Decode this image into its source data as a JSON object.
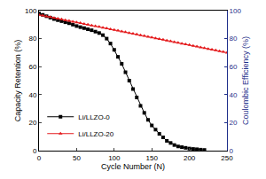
{
  "chart_data": {
    "type": "line",
    "x_label": "Cycle Number (N)",
    "y_label": "Capacity Retention (%)",
    "y2_label": "Coulombic Efficiency (%)",
    "xlim": [
      0,
      250
    ],
    "xticks": [
      0,
      50,
      100,
      150,
      200,
      250
    ],
    "ylim": [
      0,
      100
    ],
    "yticks": [
      0,
      20,
      40,
      60,
      80,
      100
    ],
    "y2lim": [
      0,
      100
    ],
    "y2ticks": [
      0,
      20,
      40,
      60,
      80,
      100
    ],
    "grid": false,
    "legend": "lower left",
    "series": [
      {
        "name": "Li/LLZO-0",
        "color": "#000000",
        "marker": "square",
        "line_style": "solid",
        "x": [
          0,
          5,
          10,
          15,
          20,
          25,
          30,
          35,
          40,
          45,
          50,
          55,
          60,
          65,
          70,
          75,
          80,
          85,
          90,
          95,
          100,
          105,
          110,
          115,
          120,
          125,
          130,
          135,
          140,
          145,
          150,
          155,
          160,
          165,
          170,
          175,
          180,
          185,
          190,
          195,
          200,
          205,
          210,
          215,
          220
        ],
        "values": [
          98,
          97,
          96,
          95,
          94,
          93.2,
          92.5,
          91.7,
          91,
          90,
          89,
          88.2,
          87.5,
          86.7,
          86,
          85,
          84,
          82.5,
          80,
          76.5,
          72,
          67,
          62,
          56,
          50,
          44,
          38,
          32,
          27,
          22,
          18,
          15,
          12,
          9.5,
          7,
          5.5,
          4,
          3,
          2.5,
          2,
          1.5,
          1.2,
          1,
          0.7,
          0.5
        ]
      },
      {
        "name": "Li/LLZO-20",
        "color": "#e41a1c",
        "marker": "triangle",
        "line_style": "solid",
        "x": [
          0,
          5,
          10,
          15,
          20,
          25,
          30,
          35,
          40,
          45,
          50,
          55,
          60,
          65,
          70,
          75,
          80,
          85,
          90,
          95,
          100,
          105,
          110,
          115,
          120,
          125,
          130,
          135,
          140,
          145,
          150,
          155,
          160,
          165,
          170,
          175,
          180,
          185,
          190,
          195,
          200,
          205,
          210,
          215,
          220,
          225,
          230,
          235,
          240,
          245,
          250
        ],
        "values": [
          97,
          96.5,
          95.9,
          95.4,
          94.8,
          94.3,
          93.8,
          93.2,
          92.7,
          92.1,
          91.6,
          91.1,
          90.5,
          90,
          89.4,
          88.9,
          88.4,
          87.8,
          87.3,
          86.7,
          86.2,
          85.7,
          85.1,
          84.6,
          84,
          83.5,
          83,
          82.4,
          81.9,
          81.3,
          80.8,
          80.3,
          79.7,
          79.2,
          78.6,
          78.1,
          77.6,
          77,
          76.5,
          75.9,
          75.4,
          74.9,
          74.3,
          73.8,
          73.2,
          72.7,
          72.2,
          71.6,
          71.1,
          70.5,
          70
        ]
      }
    ]
  }
}
